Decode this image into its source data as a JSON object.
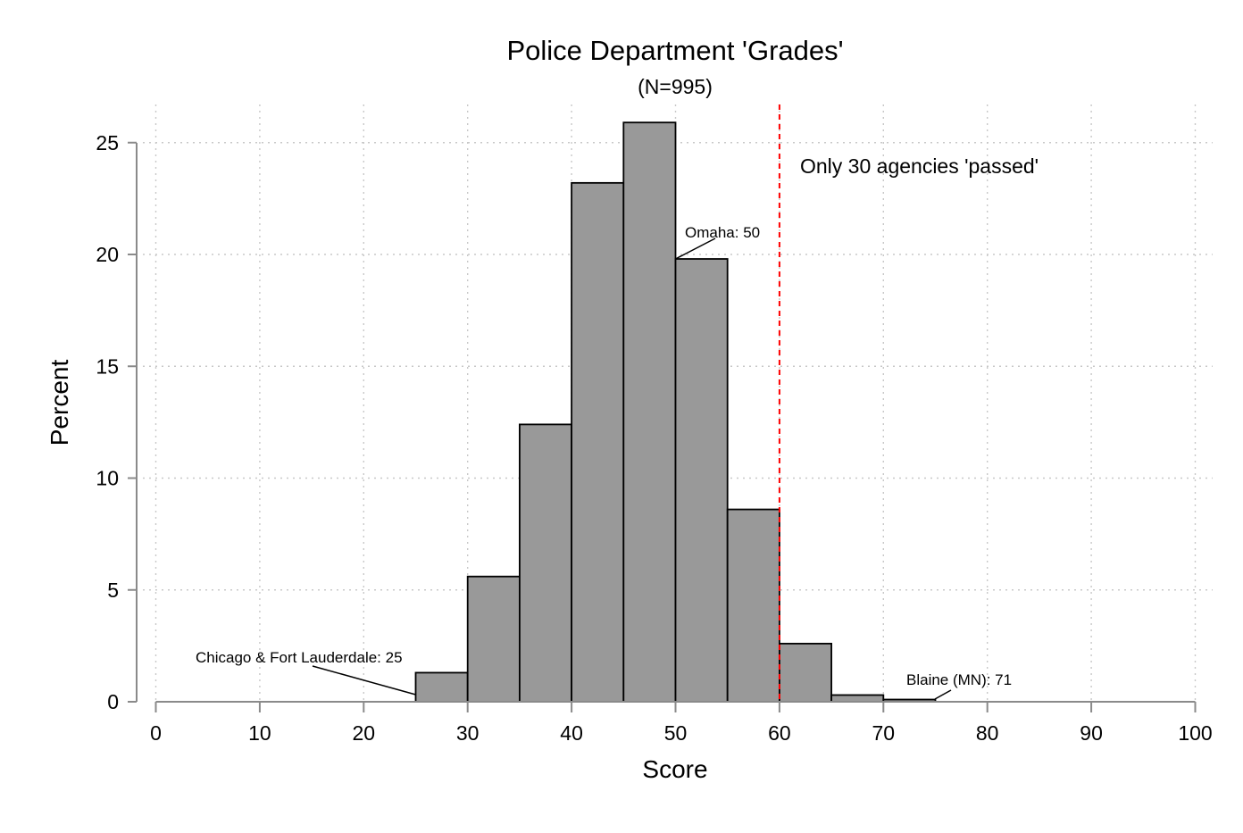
{
  "chart_data": {
    "type": "bar",
    "title": "Police Department 'Grades'",
    "subtitle": "(N=995)",
    "xlabel": "Score",
    "ylabel": "Percent",
    "xlim": [
      0,
      100
    ],
    "ylim": [
      0,
      26
    ],
    "xticks": [
      0,
      10,
      20,
      30,
      40,
      50,
      60,
      70,
      80,
      90,
      100
    ],
    "yticks": [
      0,
      5,
      10,
      15,
      20,
      25
    ],
    "grid": true,
    "bin_width": 5,
    "bins": [
      {
        "start": 25,
        "end": 30,
        "value": 1.3
      },
      {
        "start": 30,
        "end": 35,
        "value": 5.6
      },
      {
        "start": 35,
        "end": 40,
        "value": 12.4
      },
      {
        "start": 40,
        "end": 45,
        "value": 23.2
      },
      {
        "start": 45,
        "end": 50,
        "value": 25.9
      },
      {
        "start": 50,
        "end": 55,
        "value": 19.8
      },
      {
        "start": 55,
        "end": 60,
        "value": 8.6
      },
      {
        "start": 60,
        "end": 65,
        "value": 2.6
      },
      {
        "start": 65,
        "end": 70,
        "value": 0.3
      },
      {
        "start": 70,
        "end": 75,
        "value": 0.1
      }
    ],
    "bar_color": "#999999",
    "reference_line": {
      "x": 60,
      "color": "#ff0000",
      "style": "dashed"
    },
    "annotations": [
      {
        "text": "Only 30 agencies 'passed'"
      },
      {
        "text": "Omaha: 50",
        "x": 50,
        "y": 19.8
      },
      {
        "text": "Chicago & Fort Lauderdale: 25",
        "x": 25,
        "y": 0.4
      },
      {
        "text": "Blaine (MN): 71",
        "x": 71,
        "y": 0.1
      }
    ]
  }
}
